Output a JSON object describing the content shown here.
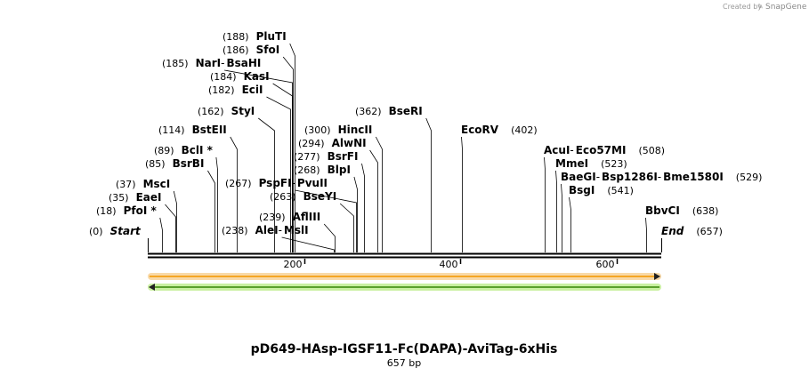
{
  "credit": {
    "prefix": "Created by",
    "brand": "SnapGene"
  },
  "map": {
    "title": "pD649-HAsp-IGSF11-Fc(DAPA)-AviTag-6xHis",
    "length_label": "657 bp",
    "length": 657,
    "ticks": [
      {
        "value": 200,
        "label": "200"
      },
      {
        "value": 400,
        "label": "400"
      },
      {
        "value": 600,
        "label": "600"
      }
    ],
    "features": [
      {
        "name": "forward feature",
        "direction": "forward",
        "start": 0,
        "end": 657,
        "color": "#f5a623",
        "stroke": "#f8d9a8"
      },
      {
        "name": "reverse feature",
        "direction": "reverse",
        "start": 0,
        "end": 657,
        "color": "#5aa02c",
        "stroke": "#c9f0a0"
      }
    ]
  },
  "sites": [
    {
      "id": "start",
      "pos": 0,
      "pos_label": "(0)",
      "parts": [
        "Start"
      ],
      "italic": true
    },
    {
      "id": "pfoi",
      "pos": 18,
      "pos_label": "(18)",
      "parts": [
        "PfoI *"
      ]
    },
    {
      "id": "eaei",
      "pos": 35,
      "pos_label": "(35)",
      "parts": [
        "EaeI"
      ]
    },
    {
      "id": "msci",
      "pos": 37,
      "pos_label": "(37)",
      "parts": [
        "MscI"
      ]
    },
    {
      "id": "bsrbi",
      "pos": 85,
      "pos_label": "(85)",
      "parts": [
        "BsrBI"
      ]
    },
    {
      "id": "bcli",
      "pos": 89,
      "pos_label": "(89)",
      "parts": [
        "BclI *"
      ]
    },
    {
      "id": "bsteii",
      "pos": 114,
      "pos_label": "(114)",
      "parts": [
        "BstEII"
      ]
    },
    {
      "id": "styi",
      "pos": 162,
      "pos_label": "(162)",
      "parts": [
        "StyI"
      ]
    },
    {
      "id": "ecii",
      "pos": 182,
      "pos_label": "(182)",
      "parts": [
        "EciI"
      ]
    },
    {
      "id": "kasi",
      "pos": 184,
      "pos_label": "(184)",
      "parts": [
        "KasI"
      ]
    },
    {
      "id": "nari",
      "pos": 185,
      "pos_label": "(185)",
      "parts": [
        "NarI",
        "BsaHI"
      ]
    },
    {
      "id": "sfoi",
      "pos": 186,
      "pos_label": "(186)",
      "parts": [
        "SfoI"
      ]
    },
    {
      "id": "pluti",
      "pos": 188,
      "pos_label": "(188)",
      "parts": [
        "PluTI"
      ]
    },
    {
      "id": "alei",
      "pos": 238,
      "pos_label": "(238)",
      "parts": [
        "AleI",
        "MslI"
      ]
    },
    {
      "id": "afliii",
      "pos": 239,
      "pos_label": "(239)",
      "parts": [
        "AflIII"
      ]
    },
    {
      "id": "bseyi",
      "pos": 263,
      "pos_label": "(263)",
      "parts": [
        "BseYI"
      ]
    },
    {
      "id": "pspfi",
      "pos": 267,
      "pos_label": "(267)",
      "parts": [
        "PspFI",
        "PvuII"
      ]
    },
    {
      "id": "blpi",
      "pos": 268,
      "pos_label": "(268)",
      "parts": [
        "BlpI"
      ]
    },
    {
      "id": "bsrfi",
      "pos": 277,
      "pos_label": "(277)",
      "parts": [
        "BsrFI"
      ]
    },
    {
      "id": "alwni",
      "pos": 294,
      "pos_label": "(294)",
      "parts": [
        "AlwNI"
      ]
    },
    {
      "id": "hincii",
      "pos": 300,
      "pos_label": "(300)",
      "parts": [
        "HincII"
      ]
    },
    {
      "id": "bseri",
      "pos": 362,
      "pos_label": "(362)",
      "parts": [
        "BseRI"
      ]
    },
    {
      "id": "ecorv",
      "pos": 402,
      "pos_label": "(402)",
      "parts": [
        "EcoRV"
      ]
    },
    {
      "id": "acui",
      "pos": 508,
      "pos_label": "(508)",
      "parts": [
        "AcuI",
        "Eco57MI"
      ]
    },
    {
      "id": "mmei",
      "pos": 523,
      "pos_label": "(523)",
      "parts": [
        "MmeI"
      ]
    },
    {
      "id": "baegi",
      "pos": 529,
      "pos_label": "(529)",
      "parts": [
        "BaeGI",
        "Bsp1286I",
        "Bme1580I"
      ]
    },
    {
      "id": "bsgi",
      "pos": 541,
      "pos_label": "(541)",
      "parts": [
        "BsgI"
      ]
    },
    {
      "id": "bbvci",
      "pos": 638,
      "pos_label": "(638)",
      "parts": [
        "BbvCI"
      ]
    },
    {
      "id": "end",
      "pos": 657,
      "pos_label": "(657)",
      "parts": [
        "End"
      ],
      "italic": true
    }
  ]
}
